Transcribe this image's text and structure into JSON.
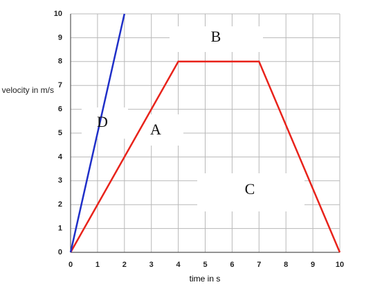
{
  "chart_data": {
    "type": "line",
    "xlabel": "time in s",
    "ylabel": "velocity in m/s",
    "xlim": [
      0,
      10
    ],
    "xticks": [
      0,
      1,
      2,
      3,
      4,
      5,
      6,
      7,
      8,
      9,
      10
    ],
    "ylim": [
      0,
      10
    ],
    "yticks": [
      0,
      1,
      2,
      3,
      4,
      5,
      6,
      7,
      8,
      9,
      10
    ],
    "grid": true,
    "series": [
      {
        "color": "#e8231b",
        "x": [
          0,
          4,
          7,
          10
        ],
        "values": [
          0,
          8,
          8,
          0
        ]
      },
      {
        "color": "#1f2fc8",
        "x": [
          0,
          2
        ],
        "values": [
          0,
          10
        ]
      }
    ],
    "annotations": [
      "B",
      "A",
      "D",
      "C"
    ]
  }
}
